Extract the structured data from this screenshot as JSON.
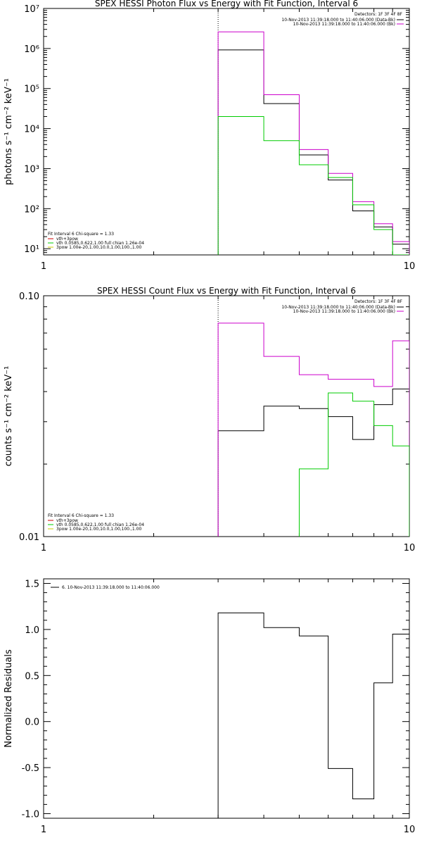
{
  "chart_data": [
    {
      "type": "line",
      "title": "SPEX HESSI Photon Flux vs Energy with Fit Function, Interval 6",
      "xlabel": "",
      "ylabel": "photons s⁻¹ cm⁻² keV⁻¹",
      "xscale": "log",
      "yscale": "log",
      "xlim": [
        1,
        10
      ],
      "ylim": [
        7,
        10000000
      ],
      "x_ticks": [
        "1",
        "10"
      ],
      "y_ticks": [
        {
          "v": 10,
          "label": "10¹"
        },
        {
          "v": 100,
          "label": "10²"
        },
        {
          "v": 1000,
          "label": "10³"
        },
        {
          "v": 10000,
          "label": "10⁴"
        },
        {
          "v": 100000,
          "label": "10⁵"
        },
        {
          "v": 1000000,
          "label": "10⁶"
        },
        {
          "v": 10000000,
          "label": "10⁷"
        }
      ],
      "vline_x": 3,
      "top_legend": {
        "header": "Detectors: 1F 3F 4F 8F",
        "entries": [
          {
            "text": "10-Nov-2013 11:39:18.000 to 11:40:06.000 (Data-Bk)",
            "color": "#000000"
          },
          {
            "text": "10-Nov-2013 11:39:18.000 to 11:40:06.000 (Bk)",
            "color": "#cc00cc"
          }
        ]
      },
      "bottom_legend": {
        "header": "Fit Interval 6   Chi-square = 1.33",
        "entries": [
          {
            "text": "vth+3pow",
            "color": "#cc0000"
          },
          {
            "text": "vth 0.0585,0.622,1.00  full chian 1.26e-04",
            "color": "#00cc00"
          },
          {
            "text": "3pow 1.00e-20,1.00,10.0,1.00,100.,1.00",
            "color": "#cccc00"
          }
        ]
      },
      "edges": [
        3,
        4,
        5,
        6,
        7,
        8,
        9,
        10
      ],
      "series": [
        {
          "name": "Data-Bk",
          "color": "#000000",
          "values": [
            920000,
            42000,
            2200,
            520,
            88,
            35,
            13
          ]
        },
        {
          "name": "Bk",
          "color": "#cc00cc",
          "values": [
            2600000,
            70000,
            3000,
            760,
            150,
            42,
            15
          ]
        },
        {
          "name": "vth",
          "color": "#00cc00",
          "values": [
            20000,
            5000,
            1250,
            600,
            125,
            30,
            7
          ]
        }
      ]
    },
    {
      "type": "line",
      "title": "SPEX HESSI Count Flux vs Energy with Fit Function, Interval 6",
      "xlabel": "",
      "ylabel": "counts s⁻¹ cm⁻² keV⁻¹",
      "xscale": "log",
      "yscale": "log",
      "xlim": [
        1,
        10
      ],
      "ylim": [
        0.01,
        0.1
      ],
      "x_ticks": [
        "1",
        "10"
      ],
      "y_ticks": [
        {
          "v": 0.01,
          "label": "0.01"
        },
        {
          "v": 0.1,
          "label": "0.10"
        }
      ],
      "vline_x": 3,
      "top_legend": {
        "header": "Detectors: 1F 3F 4F 8F",
        "entries": [
          {
            "text": "10-Nov-2013 11:39:18.000 to 11:40:06.000 (Data-Bk)",
            "color": "#000000"
          },
          {
            "text": "10-Nov-2013 11:39:18.000 to 11:40:06.000 (Bk)",
            "color": "#cc00cc"
          }
        ]
      },
      "bottom_legend": {
        "header": "Fit Interval 6   Chi-square = 1.33",
        "entries": [
          {
            "text": "vth+3pow",
            "color": "#cc0000"
          },
          {
            "text": "vth 0.0585,0.622,1.00  full chian 1.26e-04",
            "color": "#00cc00"
          },
          {
            "text": "3pow 1.00e-20,1.00,10.0,1.00,100.,1.00",
            "color": "#cccc00"
          }
        ]
      },
      "edges": [
        3,
        4,
        5,
        6,
        7,
        8,
        9,
        10
      ],
      "series": [
        {
          "name": "Data-Bk",
          "color": "#000000",
          "values": [
            0.0275,
            0.0348,
            0.034,
            0.0315,
            0.0253,
            0.0353,
            0.041
          ]
        },
        {
          "name": "Bk",
          "color": "#cc00cc",
          "values": [
            0.077,
            0.056,
            0.047,
            0.045,
            0.045,
            0.042,
            0.065
          ]
        },
        {
          "name": "vth",
          "color": "#00cc00",
          "values": [
            null,
            null,
            0.0191,
            0.0395,
            0.0365,
            0.0289,
            0.0238
          ]
        }
      ]
    },
    {
      "type": "line",
      "title": "",
      "xlabel": "",
      "ylabel": "Normalized Residuals",
      "xscale": "log",
      "yscale": "linear",
      "xlim": [
        1,
        10
      ],
      "ylim": [
        -1.05,
        1.55
      ],
      "x_ticks": [
        "1",
        "10"
      ],
      "y_ticks": [
        {
          "v": -1,
          "label": "-1.0"
        },
        {
          "v": -0.5,
          "label": "-0.5"
        },
        {
          "v": 0,
          "label": "0.0"
        },
        {
          "v": 0.5,
          "label": "0.5"
        },
        {
          "v": 1,
          "label": "1.0"
        },
        {
          "v": 1.5,
          "label": "1.5"
        }
      ],
      "top_legend": {
        "header": "",
        "entries": [
          {
            "text": "6. 10-Nov-2013 11:39:18.000 to 11:40:06.000",
            "color": "#000000"
          }
        ]
      },
      "edges": [
        3,
        4,
        5,
        6,
        7,
        8,
        9,
        10
      ],
      "series": [
        {
          "name": "",
          "color": "#000000",
          "values": [
            1.18,
            1.02,
            0.93,
            -0.51,
            -0.84,
            0.42,
            0.95
          ]
        }
      ]
    }
  ]
}
